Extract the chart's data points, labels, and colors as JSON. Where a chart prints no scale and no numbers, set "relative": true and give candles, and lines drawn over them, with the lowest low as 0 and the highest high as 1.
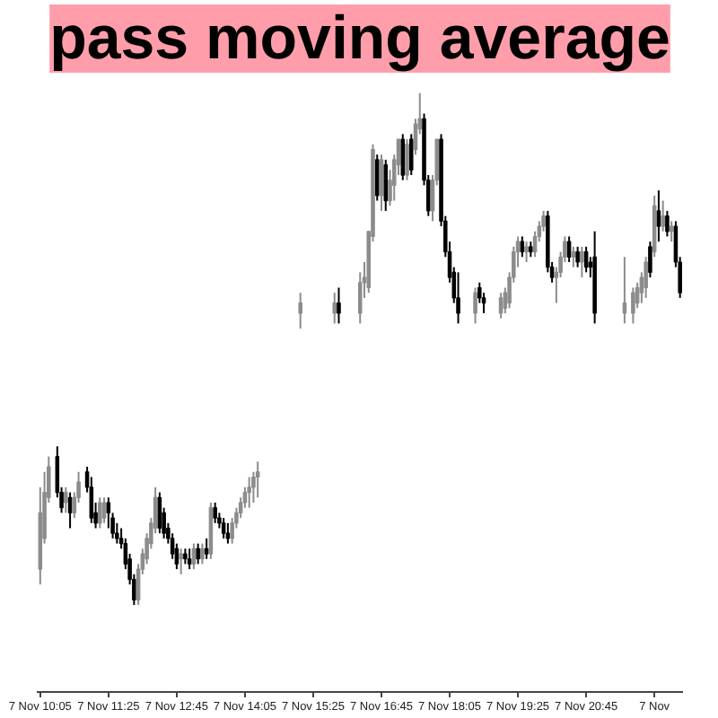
{
  "chart_data": {
    "type": "candlestick",
    "title": "pass moving average",
    "relative": true,
    "categories": [
      "7 Nov 10:05",
      null,
      null,
      null,
      null,
      null,
      null,
      null,
      null,
      null,
      null,
      null,
      null,
      null,
      null,
      null,
      "7 Nov 11:25",
      null,
      null,
      null,
      null,
      null,
      null,
      null,
      null,
      null,
      null,
      null,
      null,
      null,
      null,
      null,
      "7 Nov 12:45",
      null,
      null,
      null,
      null,
      null,
      null,
      null,
      null,
      null,
      null,
      null,
      null,
      null,
      null,
      null,
      "7 Nov 14:05",
      null,
      null,
      null,
      null,
      null,
      null,
      null,
      null,
      null,
      null,
      null,
      null,
      null,
      null,
      null,
      "7 Nov 15:25",
      null,
      null,
      null,
      null,
      null,
      null,
      null,
      null,
      null,
      null,
      null,
      null,
      null,
      null,
      null,
      "7 Nov 16:45",
      null,
      null,
      null,
      null,
      null,
      null,
      null,
      null,
      null,
      null,
      null,
      null,
      null,
      null,
      null,
      "7 Nov 18:05",
      null,
      null,
      null,
      null,
      null,
      null,
      null,
      null,
      null,
      null,
      null,
      null,
      null,
      null,
      null,
      "7 Nov 19:25",
      null,
      null,
      null,
      null,
      null,
      null,
      null,
      null,
      null,
      null,
      null,
      null,
      null,
      null,
      null,
      "7 Nov 20:45",
      null,
      null,
      null,
      null,
      null,
      null,
      null,
      null,
      null,
      null,
      null,
      null,
      null,
      null,
      null,
      "7 Nov",
      null,
      null,
      null,
      null,
      null,
      null
    ],
    "ohlc": [
      [
        0.07,
        0.23,
        0.04,
        0.18
      ],
      [
        0.13,
        0.26,
        0.12,
        0.22
      ],
      [
        0.21,
        0.29,
        0.2,
        0.27
      ],
      null,
      [
        0.29,
        0.31,
        0.21,
        0.22
      ],
      [
        0.22,
        0.23,
        0.18,
        0.19
      ],
      [
        0.2,
        0.23,
        0.18,
        0.22
      ],
      [
        0.21,
        0.22,
        0.15,
        0.18
      ],
      [
        0.18,
        0.22,
        0.17,
        0.21
      ],
      [
        0.21,
        0.26,
        0.2,
        0.24
      ],
      null,
      [
        0.26,
        0.27,
        0.22,
        0.23
      ],
      [
        0.23,
        0.25,
        0.16,
        0.17
      ],
      [
        0.18,
        0.2,
        0.15,
        0.16
      ],
      [
        0.16,
        0.21,
        0.15,
        0.2
      ],
      [
        0.17,
        0.21,
        0.16,
        0.2
      ],
      [
        0.2,
        0.21,
        0.15,
        0.18
      ],
      [
        0.17,
        0.18,
        0.13,
        0.14
      ],
      [
        0.14,
        0.16,
        0.12,
        0.13
      ],
      [
        0.13,
        0.15,
        0.11,
        0.12
      ],
      [
        0.12,
        0.13,
        0.07,
        0.08
      ],
      [
        0.09,
        0.1,
        0.04,
        0.05
      ],
      [
        0.05,
        0.06,
        0,
        0.01
      ],
      [
        0.01,
        0.08,
        0,
        0.07
      ],
      [
        0.07,
        0.11,
        0.06,
        0.1
      ],
      [
        0.09,
        0.14,
        0.08,
        0.13
      ],
      [
        0.12,
        0.17,
        0.11,
        0.16
      ],
      [
        0.15,
        0.23,
        0.14,
        0.21
      ],
      [
        0.21,
        0.22,
        0.14,
        0.15
      ],
      [
        0.18,
        0.19,
        0.13,
        0.14
      ],
      [
        0.15,
        0.16,
        0.12,
        0.13
      ],
      [
        0.13,
        0.14,
        0.09,
        0.1
      ],
      [
        0.11,
        0.12,
        0.07,
        0.08
      ],
      [
        0.09,
        0.11,
        0.06,
        0.1
      ],
      [
        0.1,
        0.11,
        0.08,
        0.09
      ],
      [
        0.09,
        0.11,
        0.07,
        0.08
      ],
      [
        0.08,
        0.12,
        0.07,
        0.11
      ],
      [
        0.11,
        0.12,
        0.08,
        0.09
      ],
      [
        0.09,
        0.12,
        0.08,
        0.11
      ],
      [
        0.11,
        0.13,
        0.09,
        0.1
      ],
      [
        0.1,
        0.2,
        0.09,
        0.19
      ],
      [
        0.19,
        0.2,
        0.16,
        0.17
      ],
      [
        0.17,
        0.18,
        0.15,
        0.16
      ],
      [
        0.16,
        0.17,
        0.13,
        0.14
      ],
      [
        0.14,
        0.16,
        0.12,
        0.13
      ],
      [
        0.13,
        0.17,
        0.12,
        0.16
      ],
      [
        0.16,
        0.19,
        0.15,
        0.18
      ],
      [
        0.18,
        0.21,
        0.17,
        0.2
      ],
      [
        0.2,
        0.23,
        0.19,
        0.22
      ],
      [
        0.22,
        0.25,
        0.19,
        0.23
      ],
      [
        0.23,
        0.26,
        0.2,
        0.25
      ],
      [
        0.25,
        0.28,
        0.21,
        0.26
      ],
      null,
      null,
      null,
      null,
      null,
      null,
      null,
      null,
      null,
      [
        0.57,
        0.61,
        0.54,
        0.59
      ],
      null,
      null,
      null,
      null,
      null,
      null,
      null,
      [
        0.57,
        0.61,
        0.55,
        0.59
      ],
      [
        0.59,
        0.62,
        0.55,
        0.57
      ],
      null,
      null,
      null,
      null,
      [
        0.57,
        0.65,
        0.55,
        0.63
      ],
      [
        0.63,
        0.67,
        0.6,
        0.64
      ],
      [
        0.62,
        0.73,
        0.61,
        0.73
      ],
      [
        0.72,
        0.9,
        0.71,
        0.89
      ],
      [
        0.87,
        0.88,
        0.79,
        0.8
      ],
      [
        0.8,
        0.88,
        0.77,
        0.87
      ],
      [
        0.86,
        0.87,
        0.77,
        0.79
      ],
      [
        0.79,
        0.85,
        0.78,
        0.83
      ],
      [
        0.82,
        0.88,
        0.79,
        0.87
      ],
      [
        0.86,
        0.91,
        0.84,
        0.91
      ],
      [
        0.91,
        0.92,
        0.83,
        0.84
      ],
      [
        0.84,
        0.91,
        0.83,
        0.9
      ],
      [
        0.91,
        0.92,
        0.84,
        0.85
      ],
      [
        0.89,
        0.95,
        0.88,
        0.94
      ],
      [
        0.93,
        1,
        0.92,
        0.95
      ],
      [
        0.95,
        0.96,
        0.82,
        0.83
      ],
      [
        0.83,
        0.84,
        0.76,
        0.77
      ],
      [
        0.77,
        0.84,
        0.75,
        0.83
      ],
      [
        0.83,
        0.91,
        0.82,
        0.91
      ],
      [
        0.91,
        0.92,
        0.74,
        0.75
      ],
      [
        0.75,
        0.76,
        0.68,
        0.69
      ],
      [
        0.69,
        0.71,
        0.63,
        0.64
      ],
      [
        0.65,
        0.66,
        0.59,
        0.6
      ],
      [
        0.6,
        0.65,
        0.55,
        0.57
      ],
      null,
      null,
      null,
      [
        0.57,
        0.62,
        0.55,
        0.61
      ],
      [
        0.62,
        0.63,
        0.59,
        0.6
      ],
      [
        0.6,
        0.61,
        0.57,
        0.59
      ],
      null,
      null,
      null,
      [
        0.57,
        0.61,
        0.56,
        0.6
      ],
      [
        0.58,
        0.62,
        0.57,
        0.61
      ],
      [
        0.59,
        0.65,
        0.58,
        0.64
      ],
      [
        0.64,
        0.7,
        0.63,
        0.69
      ],
      [
        0.69,
        0.72,
        0.66,
        0.71
      ],
      [
        0.71,
        0.72,
        0.68,
        0.69
      ],
      [
        0.69,
        0.71,
        0.67,
        0.7
      ],
      [
        0.7,
        0.71,
        0.68,
        0.69
      ],
      [
        0.69,
        0.73,
        0.68,
        0.72
      ],
      [
        0.72,
        0.75,
        0.71,
        0.74
      ],
      [
        0.74,
        0.77,
        0.73,
        0.76
      ],
      [
        0.76,
        0.77,
        0.65,
        0.66
      ],
      [
        0.66,
        0.67,
        0.63,
        0.64
      ],
      [
        0.64,
        0.66,
        0.59,
        0.65
      ],
      [
        0.65,
        0.69,
        0.64,
        0.68
      ],
      [
        0.68,
        0.72,
        0.67,
        0.71
      ],
      [
        0.71,
        0.72,
        0.67,
        0.68
      ],
      [
        0.68,
        0.7,
        0.66,
        0.69
      ],
      [
        0.69,
        0.7,
        0.66,
        0.67
      ],
      [
        0.67,
        0.7,
        0.64,
        0.69
      ],
      [
        0.69,
        0.7,
        0.65,
        0.66
      ],
      [
        0.67,
        0.68,
        0.64,
        0.66
      ],
      [
        0.68,
        0.73,
        0.55,
        0.57
      ],
      null,
      null,
      null,
      null,
      null,
      null,
      [
        0.57,
        0.68,
        0.55,
        0.59
      ],
      null,
      [
        0.57,
        0.62,
        0.55,
        0.61
      ],
      [
        0.59,
        0.63,
        0.58,
        0.62
      ],
      [
        0.61,
        0.65,
        0.59,
        0.64
      ],
      [
        0.62,
        0.68,
        0.6,
        0.67
      ],
      [
        0.7,
        0.71,
        0.64,
        0.65
      ],
      [
        0.69,
        0.8,
        0.68,
        0.78
      ],
      [
        0.77,
        0.81,
        0.71,
        0.74
      ],
      [
        0.74,
        0.79,
        0.73,
        0.76
      ],
      [
        0.76,
        0.77,
        0.72,
        0.73
      ],
      [
        0.73,
        0.75,
        0.71,
        0.74
      ],
      [
        0.74,
        0.75,
        0.66,
        0.67
      ],
      [
        0.67,
        0.68,
        0.6,
        0.61
      ]
    ],
    "colors": [
      "#8c8c8c",
      "#8c8c8c",
      "#8c8c8c",
      null,
      "#000000",
      "#000000",
      "#8c8c8c",
      "#000000",
      "#8c8c8c",
      "#8c8c8c",
      null,
      "#000000",
      "#000000",
      "#000000",
      "#8c8c8c",
      "#8c8c8c",
      "#000000",
      "#000000",
      "#000000",
      "#000000",
      "#000000",
      "#000000",
      "#000000",
      "#8c8c8c",
      "#8c8c8c",
      "#8c8c8c",
      "#8c8c8c",
      "#8c8c8c",
      "#000000",
      "#000000",
      "#000000",
      "#000000",
      "#000000",
      "#8c8c8c",
      "#000000",
      "#000000",
      "#8c8c8c",
      "#000000",
      "#8c8c8c",
      "#000000",
      "#8c8c8c",
      "#000000",
      "#000000",
      "#000000",
      "#000000",
      "#8c8c8c",
      "#8c8c8c",
      "#8c8c8c",
      "#8c8c8c",
      "#8c8c8c",
      "#8c8c8c",
      "#8c8c8c",
      null,
      null,
      null,
      null,
      null,
      null,
      null,
      null,
      null,
      "#8c8c8c",
      null,
      null,
      null,
      null,
      null,
      null,
      null,
      "#8c8c8c",
      "#000000",
      null,
      null,
      null,
      null,
      "#8c8c8c",
      "#8c8c8c",
      "#8c8c8c",
      "#8c8c8c",
      "#000000",
      "#8c8c8c",
      "#000000",
      "#8c8c8c",
      "#8c8c8c",
      "#8c8c8c",
      "#000000",
      "#8c8c8c",
      "#000000",
      "#8c8c8c",
      "#8c8c8c",
      "#000000",
      "#000000",
      "#8c8c8c",
      "#8c8c8c",
      "#000000",
      "#000000",
      "#000000",
      "#000000",
      "#000000",
      null,
      null,
      null,
      "#8c8c8c",
      "#000000",
      "#000000",
      null,
      null,
      null,
      "#8c8c8c",
      "#8c8c8c",
      "#8c8c8c",
      "#8c8c8c",
      "#8c8c8c",
      "#000000",
      "#8c8c8c",
      "#000000",
      "#8c8c8c",
      "#8c8c8c",
      "#8c8c8c",
      "#000000",
      "#000000",
      "#8c8c8c",
      "#8c8c8c",
      "#8c8c8c",
      "#000000",
      "#8c8c8c",
      "#000000",
      "#8c8c8c",
      "#000000",
      "#000000",
      "#000000",
      null,
      null,
      null,
      null,
      null,
      null,
      "#8c8c8c",
      null,
      "#8c8c8c",
      "#8c8c8c",
      "#8c8c8c",
      "#8c8c8c",
      "#000000",
      "#8c8c8c",
      "#000000",
      "#8c8c8c",
      "#000000",
      "#8c8c8c",
      "#000000",
      "#000000"
    ]
  }
}
